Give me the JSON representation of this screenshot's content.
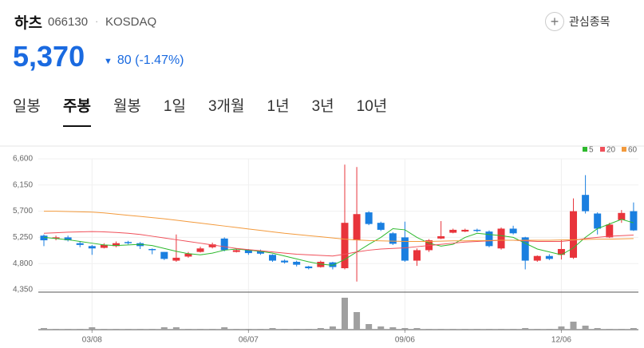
{
  "header": {
    "name": "하츠",
    "code": "066130",
    "separator": "·",
    "market": "KOSDAQ",
    "watch": "관심종목",
    "price": "5,370",
    "change": "80",
    "change_pct": "(-1.47%)"
  },
  "tabs": [
    "일봉",
    "주봉",
    "월봉",
    "1일",
    "3개월",
    "1년",
    "3년",
    "10년"
  ],
  "active_tab": 1,
  "chart_data": {
    "type": "candlestick",
    "categories": [
      null,
      null,
      null,
      null,
      "03/08",
      null,
      null,
      null,
      null,
      null,
      null,
      null,
      null,
      null,
      null,
      null,
      null,
      "06/07",
      null,
      null,
      null,
      null,
      null,
      null,
      null,
      null,
      null,
      null,
      null,
      null,
      "09/06",
      null,
      null,
      null,
      null,
      null,
      null,
      null,
      null,
      null,
      null,
      null,
      null,
      "12/06",
      null,
      null,
      null,
      null,
      null,
      null
    ],
    "open": [
      5280,
      5230,
      5250,
      5150,
      5100,
      5070,
      5100,
      5170,
      5150,
      5050,
      5000,
      4850,
      4920,
      5000,
      5080,
      5230,
      5000,
      5030,
      5020,
      4950,
      4850,
      4830,
      4750,
      4740,
      4820,
      4720,
      5200,
      5680,
      5500,
      5320,
      5250,
      4850,
      5030,
      5230,
      5330,
      5350,
      5380,
      5350,
      5060,
      5400,
      5250,
      4850,
      4930,
      4950,
      4900,
      5980,
      5660,
      5250,
      5550,
      5700
    ],
    "high": [
      5300,
      5280,
      5280,
      5180,
      5120,
      5150,
      5180,
      5190,
      5170,
      5060,
      5000,
      5300,
      5000,
      5090,
      5160,
      5250,
      5060,
      5050,
      5040,
      4960,
      4870,
      4850,
      4760,
      4850,
      4830,
      6500,
      6460,
      5700,
      5520,
      5340,
      5520,
      5060,
      5220,
      5530,
      5400,
      5400,
      5400,
      5370,
      5420,
      5450,
      5260,
      4940,
      4960,
      5200,
      5920,
      6320,
      5680,
      5500,
      5720,
      5850
    ],
    "low": [
      5100,
      5200,
      5180,
      5080,
      4950,
      5060,
      5080,
      5130,
      5050,
      4960,
      4860,
      4830,
      4900,
      4990,
      5060,
      5010,
      4990,
      4950,
      4950,
      4830,
      4800,
      4750,
      4700,
      4730,
      4700,
      4700,
      4490,
      5460,
      5360,
      5120,
      4830,
      4760,
      5000,
      5220,
      5320,
      5340,
      5340,
      5080,
      5040,
      5300,
      4700,
      4830,
      4860,
      4870,
      4880,
      5660,
      5300,
      5240,
      5500,
      5360
    ],
    "close": [
      5200,
      5250,
      5200,
      5120,
      5060,
      5120,
      5150,
      5150,
      5100,
      5030,
      4880,
      4900,
      4970,
      5060,
      5130,
      5030,
      5030,
      4980,
      4970,
      4850,
      4820,
      4780,
      4720,
      4830,
      4740,
      5500,
      5650,
      5480,
      5380,
      5140,
      4850,
      5030,
      5200,
      5270,
      5380,
      5380,
      5360,
      5100,
      5400,
      5320,
      4850,
      4930,
      4880,
      5050,
      5700,
      5700,
      5400,
      5470,
      5670,
      5370
    ],
    "volume": [
      2,
      1,
      1,
      1,
      3,
      1,
      1,
      1,
      1,
      1,
      3,
      3,
      1,
      1,
      1,
      3,
      1,
      1,
      1,
      2,
      1,
      1,
      1,
      2,
      4,
      40,
      22,
      7,
      4,
      3,
      2,
      2,
      1,
      1,
      1,
      1,
      1,
      1,
      1,
      1,
      2,
      1,
      1,
      4,
      10,
      5,
      2,
      1,
      1,
      2
    ],
    "up_color": "#e8343b",
    "down_color": "#1a7fe0",
    "volume_color": "#a0a0a0",
    "series": [
      {
        "name": "5",
        "color": "#2db92d",
        "values": [
          5250,
          5230,
          5210,
          5180,
          5150,
          5120,
          5110,
          5120,
          5130,
          5110,
          5060,
          5010,
          4970,
          4950,
          4980,
          5030,
          5050,
          5030,
          5010,
          4980,
          4930,
          4880,
          4830,
          4790,
          4770,
          4870,
          5000,
          5130,
          5250,
          5400,
          5380,
          5250,
          5150,
          5100,
          5130,
          5250,
          5320,
          5300,
          5280,
          5250,
          5150,
          5050,
          5000,
          4950,
          5070,
          5250,
          5400,
          5480,
          5560,
          5500
        ]
      },
      {
        "name": "20",
        "color": "#f0505a",
        "values": [
          5320,
          5330,
          5340,
          5345,
          5350,
          5345,
          5335,
          5320,
          5300,
          5270,
          5240,
          5210,
          5180,
          5150,
          5120,
          5090,
          5060,
          5040,
          5020,
          5000,
          4980,
          4960,
          4950,
          4940,
          4930,
          4960,
          5000,
          5030,
          5050,
          5060,
          5070,
          5090,
          5110,
          5130,
          5150,
          5170,
          5180,
          5190,
          5200,
          5200,
          5190,
          5180,
          5180,
          5180,
          5200,
          5230,
          5250,
          5270,
          5280,
          5290
        ]
      },
      {
        "name": "60",
        "color": "#f39a3c",
        "values": [
          5700,
          5700,
          5695,
          5690,
          5685,
          5670,
          5650,
          5630,
          5610,
          5590,
          5570,
          5545,
          5520,
          5495,
          5470,
          5445,
          5420,
          5395,
          5370,
          5345,
          5320,
          5300,
          5280,
          5260,
          5240,
          5220,
          5205,
          5195,
          5190,
          5185,
          5180,
          5180,
          5180,
          5185,
          5190,
          5190,
          5195,
          5195,
          5200,
          5200,
          5200,
          5200,
          5200,
          5205,
          5210,
          5215,
          5220,
          5220,
          5225,
          5230
        ]
      }
    ],
    "ylim": [
      4350,
      6600
    ],
    "yticks": [
      {
        "value": 4350,
        "label": "4,350"
      },
      {
        "value": 4800,
        "label": "4,800"
      },
      {
        "value": 5250,
        "label": "5,250"
      },
      {
        "value": 5700,
        "label": "5,700"
      },
      {
        "value": 6150,
        "label": "6,150"
      },
      {
        "value": 6600,
        "label": "6,600"
      }
    ],
    "grid": true
  }
}
